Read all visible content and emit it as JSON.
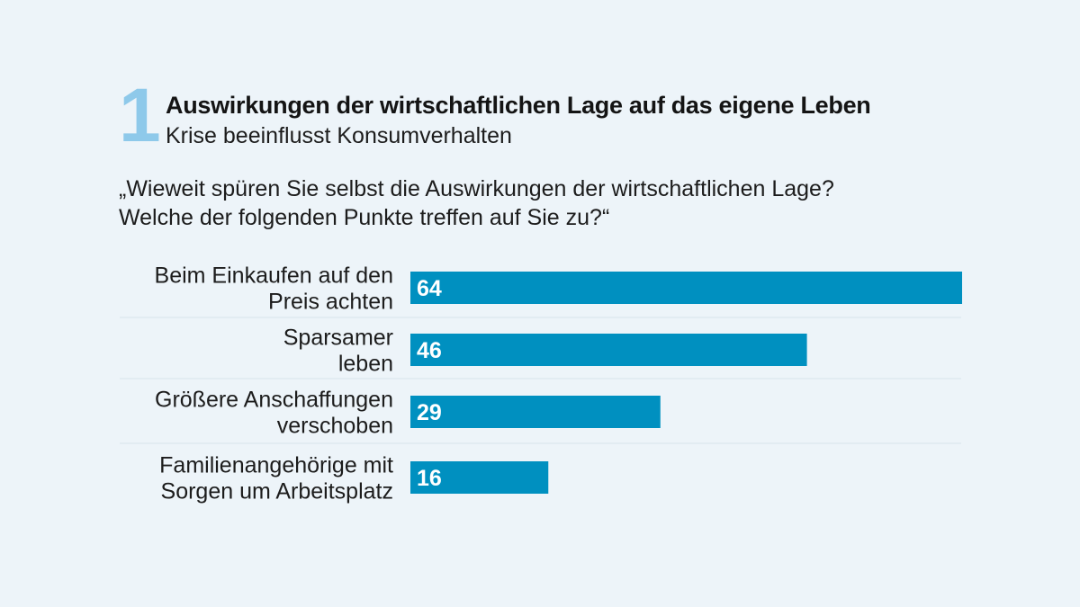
{
  "header": {
    "number": "1",
    "title": "Auswirkungen der wirtschaftlichen Lage auf das eigene Leben",
    "subtitle": "Krise beeinflusst Konsumverhalten"
  },
  "question": {
    "line1": "„Wieweit spüren Sie selbst die Auswirkungen der wirtschaftlichen Lage?",
    "line2": "Welche der folgenden Punkte treffen auf Sie zu?“"
  },
  "colors": {
    "background": "#edf4f9",
    "bar": "#0090c0",
    "number": "#8ec9ea",
    "divider": "#d8e3ea"
  },
  "chart_data": {
    "type": "bar",
    "orientation": "horizontal",
    "categories": [
      [
        "Beim Einkaufen auf den",
        "Preis achten"
      ],
      [
        "Sparsamer",
        "leben"
      ],
      [
        "Größere Anschaffungen",
        "verschoben"
      ],
      [
        "Familienangehörige mit",
        "Sorgen um Arbeitsplatz"
      ]
    ],
    "values": [
      64,
      46,
      29,
      16
    ],
    "value_labels": [
      "64",
      "46",
      "29",
      "16"
    ],
    "xlim": [
      0,
      64
    ],
    "grid": false,
    "legend": "none"
  }
}
